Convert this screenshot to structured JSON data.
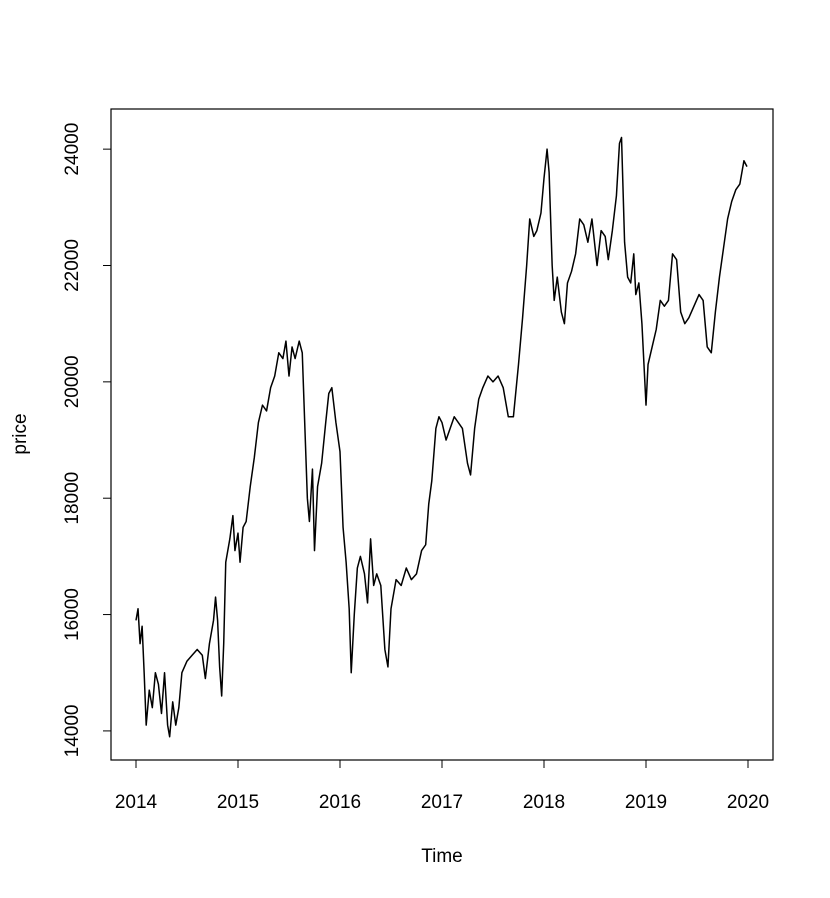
{
  "chart_data": {
    "type": "line",
    "xlabel": "Time",
    "ylabel": "price",
    "x": [
      2014.0,
      2014.02,
      2014.04,
      2014.06,
      2014.08,
      2014.1,
      2014.13,
      2014.16,
      2014.19,
      2014.22,
      2014.25,
      2014.28,
      2014.31,
      2014.33,
      2014.36,
      2014.39,
      2014.42,
      2014.45,
      2014.5,
      2014.55,
      2014.6,
      2014.65,
      2014.68,
      2014.72,
      2014.76,
      2014.78,
      2014.8,
      2014.82,
      2014.84,
      2014.86,
      2014.88,
      2014.92,
      2014.95,
      2014.97,
      2015.0,
      2015.02,
      2015.05,
      2015.08,
      2015.12,
      2015.16,
      2015.2,
      2015.24,
      2015.28,
      2015.32,
      2015.36,
      2015.4,
      2015.44,
      2015.47,
      2015.5,
      2015.53,
      2015.56,
      2015.6,
      2015.63,
      2015.66,
      2015.68,
      2015.7,
      2015.73,
      2015.75,
      2015.78,
      2015.82,
      2015.86,
      2015.89,
      2015.92,
      2015.96,
      2016.0,
      2016.03,
      2016.06,
      2016.09,
      2016.11,
      2016.14,
      2016.17,
      2016.2,
      2016.24,
      2016.27,
      2016.3,
      2016.33,
      2016.36,
      2016.4,
      2016.44,
      2016.47,
      2016.5,
      2016.55,
      2016.6,
      2016.65,
      2016.7,
      2016.75,
      2016.8,
      2016.84,
      2016.87,
      2016.9,
      2016.94,
      2016.97,
      2017.0,
      2017.04,
      2017.08,
      2017.12,
      2017.16,
      2017.2,
      2017.25,
      2017.28,
      2017.32,
      2017.36,
      2017.4,
      2017.45,
      2017.5,
      2017.55,
      2017.6,
      2017.65,
      2017.7,
      2017.75,
      2017.79,
      2017.83,
      2017.86,
      2017.9,
      2017.93,
      2017.97,
      2018.0,
      2018.03,
      2018.05,
      2018.08,
      2018.1,
      2018.13,
      2018.17,
      2018.2,
      2018.23,
      2018.27,
      2018.31,
      2018.35,
      2018.39,
      2018.43,
      2018.47,
      2018.52,
      2018.56,
      2018.6,
      2018.63,
      2018.67,
      2018.71,
      2018.74,
      2018.76,
      2018.79,
      2018.82,
      2018.85,
      2018.88,
      2018.9,
      2018.93,
      2018.96,
      2018.98,
      2019.0,
      2019.02,
      2019.06,
      2019.1,
      2019.14,
      2019.18,
      2019.22,
      2019.26,
      2019.3,
      2019.34,
      2019.38,
      2019.42,
      2019.47,
      2019.52,
      2019.56,
      2019.6,
      2019.64,
      2019.68,
      2019.72,
      2019.76,
      2019.8,
      2019.84,
      2019.88,
      2019.92,
      2019.96,
      2019.99
    ],
    "series": [
      {
        "color": "#000000",
        "values": [
          15900,
          16100,
          15500,
          15800,
          15000,
          14100,
          14700,
          14400,
          15000,
          14800,
          14300,
          15000,
          14100,
          13900,
          14500,
          14100,
          14400,
          15000,
          15200,
          15300,
          15400,
          15300,
          14900,
          15500,
          15900,
          16300,
          15900,
          15100,
          14600,
          15500,
          16900,
          17300,
          17700,
          17100,
          17400,
          16900,
          17500,
          17600,
          18200,
          18700,
          19300,
          19600,
          19500,
          19900,
          20100,
          20500,
          20400,
          20700,
          20100,
          20600,
          20400,
          20700,
          20500,
          19000,
          18000,
          17600,
          18500,
          17100,
          18200,
          18600,
          19300,
          19800,
          19900,
          19300,
          18800,
          17500,
          16900,
          16100,
          15000,
          16000,
          16800,
          17000,
          16700,
          16200,
          17300,
          16500,
          16700,
          16500,
          15400,
          15100,
          16100,
          16600,
          16500,
          16800,
          16600,
          16700,
          17100,
          17200,
          17900,
          18300,
          19200,
          19400,
          19300,
          19000,
          19200,
          19400,
          19300,
          19200,
          18600,
          18400,
          19200,
          19700,
          19900,
          20100,
          20000,
          20100,
          19900,
          19400,
          19400,
          20300,
          21100,
          22000,
          22800,
          22500,
          22600,
          22900,
          23500,
          24000,
          23600,
          22000,
          21400,
          21800,
          21200,
          21000,
          21700,
          21900,
          22200,
          22800,
          22700,
          22400,
          22800,
          22000,
          22600,
          22500,
          22100,
          22600,
          23200,
          24100,
          24200,
          22400,
          21800,
          21700,
          22200,
          21500,
          21700,
          21000,
          20300,
          19600,
          20300,
          20600,
          20900,
          21400,
          21300,
          21400,
          22200,
          22100,
          21200,
          21000,
          21100,
          21300,
          21500,
          21400,
          20600,
          20500,
          21200,
          21800,
          22300,
          22800,
          23100,
          23300,
          23400,
          23800,
          23700
        ]
      }
    ],
    "xlim": [
      2013.755,
      2020.245
    ],
    "xticks": [
      2014,
      2015,
      2016,
      2017,
      2018,
      2019,
      2020
    ],
    "ylim": [
      13500,
      24690
    ],
    "yticks": [
      14000,
      16000,
      18000,
      20000,
      22000,
      24000
    ]
  }
}
